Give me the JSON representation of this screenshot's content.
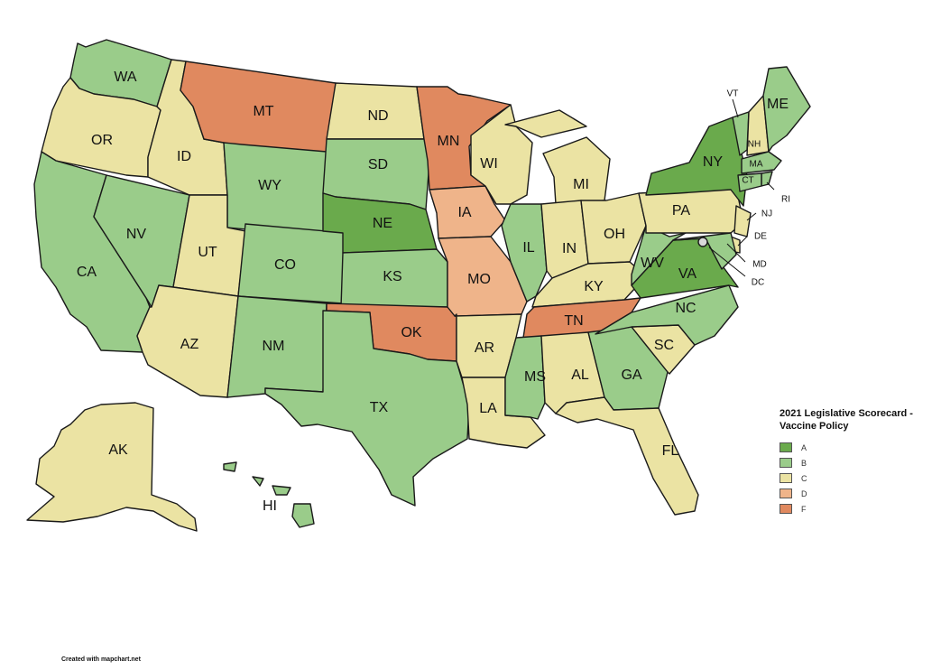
{
  "legend": {
    "title": "2021 Legislative Scorecard - Vaccine Policy",
    "items": [
      {
        "grade": "A",
        "color": "#6aaa4c"
      },
      {
        "grade": "B",
        "color": "#9acc8a"
      },
      {
        "grade": "C",
        "color": "#ebe3a3"
      },
      {
        "grade": "D",
        "color": "#efb48a"
      },
      {
        "grade": "F",
        "color": "#e0895f"
      }
    ]
  },
  "credit": "Created with mapchart.net",
  "states": {
    "WA": {
      "grade": "B",
      "label": "WA"
    },
    "OR": {
      "grade": "C",
      "label": "OR"
    },
    "CA": {
      "grade": "B",
      "label": "CA"
    },
    "NV": {
      "grade": "B",
      "label": "NV"
    },
    "ID": {
      "grade": "C",
      "label": "ID"
    },
    "MT": {
      "grade": "F",
      "label": "MT"
    },
    "WY": {
      "grade": "B",
      "label": "WY"
    },
    "UT": {
      "grade": "C",
      "label": "UT"
    },
    "AZ": {
      "grade": "C",
      "label": "AZ"
    },
    "CO": {
      "grade": "B",
      "label": "CO"
    },
    "NM": {
      "grade": "B",
      "label": "NM"
    },
    "ND": {
      "grade": "C",
      "label": "ND"
    },
    "SD": {
      "grade": "B",
      "label": "SD"
    },
    "NE": {
      "grade": "A",
      "label": "NE"
    },
    "KS": {
      "grade": "B",
      "label": "KS"
    },
    "OK": {
      "grade": "F",
      "label": "OK"
    },
    "TX": {
      "grade": "B",
      "label": "TX"
    },
    "MN": {
      "grade": "F",
      "label": "MN"
    },
    "IA": {
      "grade": "D",
      "label": "IA"
    },
    "MO": {
      "grade": "D",
      "label": "MO"
    },
    "AR": {
      "grade": "C",
      "label": "AR"
    },
    "LA": {
      "grade": "C",
      "label": "LA"
    },
    "WI": {
      "grade": "C",
      "label": "WI"
    },
    "IL": {
      "grade": "B",
      "label": "IL"
    },
    "MI": {
      "grade": "C",
      "label": "MI"
    },
    "IN": {
      "grade": "C",
      "label": "IN"
    },
    "OH": {
      "grade": "C",
      "label": "OH"
    },
    "KY": {
      "grade": "C",
      "label": "KY"
    },
    "TN": {
      "grade": "F",
      "label": "TN"
    },
    "MS": {
      "grade": "B",
      "label": "MS"
    },
    "AL": {
      "grade": "C",
      "label": "AL"
    },
    "GA": {
      "grade": "B",
      "label": "GA"
    },
    "FL": {
      "grade": "C",
      "label": "FL"
    },
    "SC": {
      "grade": "C",
      "label": "SC"
    },
    "NC": {
      "grade": "B",
      "label": "NC"
    },
    "VA": {
      "grade": "A",
      "label": "VA"
    },
    "WV": {
      "grade": "B",
      "label": "WV"
    },
    "PA": {
      "grade": "C",
      "label": "PA"
    },
    "NY": {
      "grade": "A",
      "label": "NY"
    },
    "VT": {
      "grade": "B",
      "label": "VT"
    },
    "NH": {
      "grade": "C",
      "label": "NH"
    },
    "ME": {
      "grade": "B",
      "label": "ME"
    },
    "MA": {
      "grade": "B",
      "label": "MA"
    },
    "RI": {
      "grade": "B",
      "label": "RI"
    },
    "CT": {
      "grade": "B",
      "label": "CT"
    },
    "NJ": {
      "grade": "C",
      "label": "NJ"
    },
    "DE": {
      "grade": "C",
      "label": "DE"
    },
    "MD": {
      "grade": "B",
      "label": "MD"
    },
    "DC": {
      "grade": "B",
      "label": "DC"
    },
    "AK": {
      "grade": "C",
      "label": "AK"
    },
    "HI": {
      "grade": "B",
      "label": "HI"
    }
  }
}
